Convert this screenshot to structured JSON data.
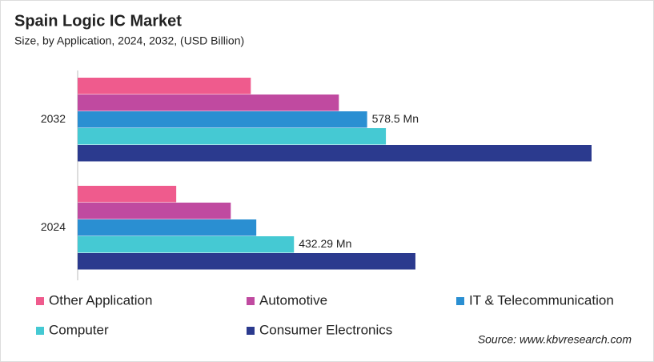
{
  "chart_data": {
    "type": "bar",
    "orientation": "horizontal",
    "title": "Spain Logic IC Market",
    "subtitle": "Size, by Application, 2024, 2032, (USD Billion)",
    "categories": [
      "2032",
      "2024"
    ],
    "series": [
      {
        "name": "Other Application",
        "color": "#ef5b8d",
        "values": [
          346,
          197
        ]
      },
      {
        "name": "Automotive",
        "color": "#c04aa0",
        "values": [
          522,
          306
        ]
      },
      {
        "name": "IT & Telecommunication",
        "color": "#2a8fd2",
        "values": [
          578.5,
          357
        ],
        "value_labels": [
          "578.5 Mn",
          null
        ]
      },
      {
        "name": "Computer",
        "color": "#45c9d3",
        "values": [
          616,
          432.29
        ],
        "value_labels": [
          null,
          "432.29 Mn"
        ]
      },
      {
        "name": "Consumer Electronics",
        "color": "#2b3a8e",
        "values": [
          1027,
          675
        ]
      }
    ],
    "source": "Source: www.kbvresearch.com"
  }
}
